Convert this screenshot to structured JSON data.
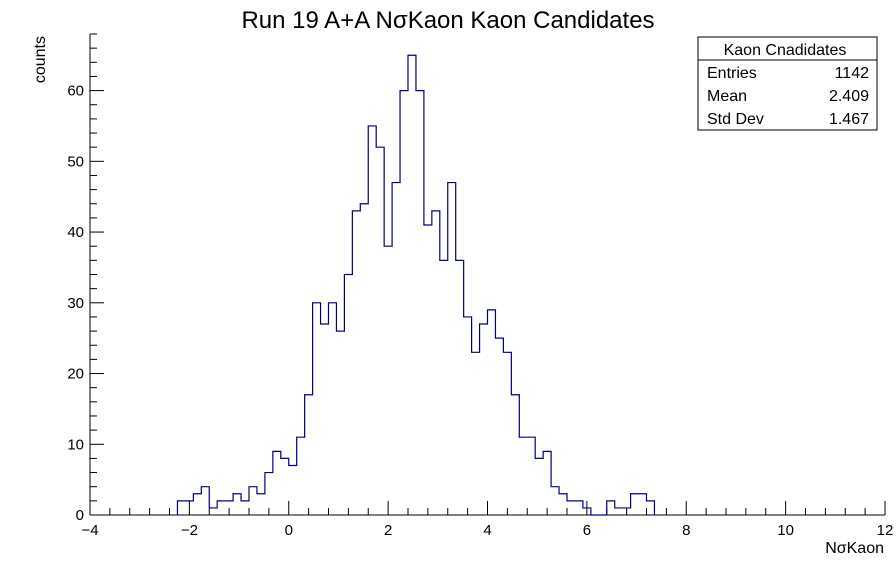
{
  "chart_data": {
    "type": "histogram",
    "title": "Run 19 A+A NσKaon Kaon Candidates",
    "xlabel": "NσKaon",
    "ylabel": "counts",
    "xlim": [
      -4,
      12
    ],
    "ylim": [
      0,
      68
    ],
    "bin_width": 0.16,
    "x_ticks": [
      -4,
      -2,
      0,
      2,
      4,
      6,
      8,
      10,
      12
    ],
    "y_ticks": [
      0,
      10,
      20,
      30,
      40,
      50,
      60
    ],
    "x_start": -2.24,
    "values": [
      2,
      2,
      3,
      4,
      1,
      2,
      2,
      3,
      2,
      4,
      3,
      6,
      9,
      8,
      7,
      11,
      17,
      30,
      27,
      30,
      26,
      34,
      43,
      44,
      55,
      52,
      38,
      47,
      60,
      65,
      60,
      41,
      43,
      36,
      47,
      36,
      28,
      23,
      27,
      29,
      25,
      23,
      17,
      11,
      11,
      8,
      9,
      4,
      3,
      2,
      2,
      1,
      0,
      0,
      2,
      1,
      1,
      3,
      3,
      2
    ],
    "line_color": "#000080",
    "stats": {
      "name": "Kaon Cnadidates",
      "rows": [
        {
          "label": "Entries",
          "value": "1142"
        },
        {
          "label": "Mean",
          "value": "2.409"
        },
        {
          "label": "Std Dev",
          "value": "1.467"
        }
      ]
    }
  }
}
